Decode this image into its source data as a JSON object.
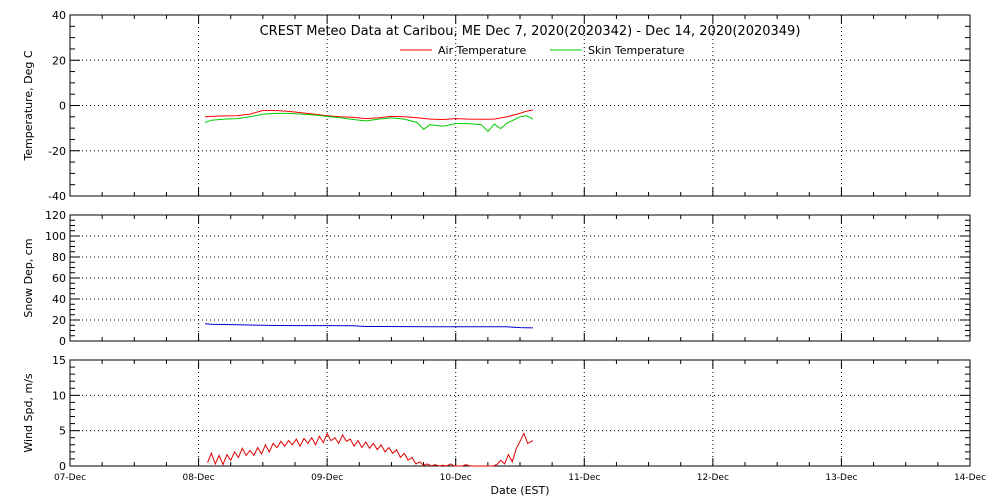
{
  "chart_data": [
    {
      "type": "line",
      "title": "CREST Meteo Data at Caribou, ME   Dec  7, 2020(2020342) - Dec 14, 2020(2020349)",
      "ylabel": "Temperature, Deg C",
      "ylim": [
        -40,
        40
      ],
      "yticks": [
        "40",
        "20",
        "0",
        "-20",
        "-40"
      ],
      "grid": true,
      "legend_position": "top-center",
      "series": [
        {
          "name": "Air Temperature",
          "color": "#ff0000",
          "x": [
            1.05,
            1.1,
            1.2,
            1.3,
            1.4,
            1.5,
            1.6,
            1.7,
            1.8,
            1.9,
            2.0,
            2.1,
            2.2,
            2.3,
            2.4,
            2.5,
            2.6,
            2.7,
            2.8,
            2.9,
            3.0,
            3.1,
            3.2,
            3.3,
            3.4,
            3.5,
            3.55,
            3.6
          ],
          "values": [
            -5.0,
            -4.8,
            -4.6,
            -4.5,
            -3.8,
            -2.2,
            -2.2,
            -2.6,
            -3.2,
            -3.8,
            -4.5,
            -5.0,
            -5.2,
            -5.8,
            -5.4,
            -4.8,
            -5.0,
            -5.4,
            -6.0,
            -6.2,
            -5.8,
            -6.0,
            -6.1,
            -6.0,
            -5.0,
            -3.5,
            -2.5,
            -2.0
          ]
        },
        {
          "name": "Skin Temperature",
          "color": "#00cc00",
          "x": [
            1.05,
            1.1,
            1.2,
            1.3,
            1.4,
            1.5,
            1.6,
            1.7,
            1.8,
            1.9,
            2.0,
            2.1,
            2.2,
            2.3,
            2.4,
            2.5,
            2.6,
            2.7,
            2.75,
            2.8,
            2.9,
            3.0,
            3.1,
            3.2,
            3.25,
            3.3,
            3.35,
            3.4,
            3.5,
            3.55,
            3.6
          ],
          "values": [
            -7.5,
            -6.5,
            -6.0,
            -5.8,
            -5.0,
            -3.8,
            -3.5,
            -3.5,
            -3.8,
            -4.2,
            -4.8,
            -5.4,
            -6.2,
            -6.8,
            -6.0,
            -5.5,
            -6.0,
            -7.5,
            -10.5,
            -8.5,
            -9.2,
            -8.0,
            -8.0,
            -8.5,
            -11.5,
            -8.2,
            -10.2,
            -7.8,
            -5.0,
            -4.5,
            -6.0
          ]
        }
      ]
    },
    {
      "type": "line",
      "ylabel": "Snow Dep, cm",
      "ylim": [
        0,
        120
      ],
      "yticks": [
        "120",
        "100",
        "80",
        "60",
        "40",
        "20",
        "0"
      ],
      "grid": true,
      "series": [
        {
          "color": "#0000cc",
          "x": [
            1.05,
            1.1,
            1.3,
            1.5,
            1.6,
            1.8,
            2.0,
            2.2,
            2.3,
            2.6,
            2.8,
            3.0,
            3.2,
            3.4,
            3.5,
            3.6
          ],
          "values": [
            16.5,
            16,
            15.5,
            15,
            14.8,
            14.7,
            14.7,
            14.5,
            13.8,
            13.7,
            13.6,
            13.6,
            13.5,
            13.5,
            12.8,
            12.5
          ]
        }
      ]
    },
    {
      "type": "line",
      "ylabel": "Wind Spd, m/s",
      "xlabel": "Date (EST)",
      "ylim": [
        0,
        15
      ],
      "yticks": [
        "15",
        "10",
        "5",
        "0"
      ],
      "xlim": [
        0,
        7
      ],
      "xticks": [
        "07-Dec",
        "08-Dec",
        "09-Dec",
        "10-Dec",
        "11-Dec",
        "12-Dec",
        "13-Dec",
        "14-Dec"
      ],
      "grid": true,
      "series": [
        {
          "color": "#dd0000",
          "x": [
            1.07,
            1.1,
            1.13,
            1.16,
            1.19,
            1.22,
            1.25,
            1.28,
            1.31,
            1.34,
            1.37,
            1.4,
            1.43,
            1.46,
            1.49,
            1.52,
            1.55,
            1.58,
            1.61,
            1.64,
            1.67,
            1.7,
            1.73,
            1.76,
            1.79,
            1.82,
            1.85,
            1.88,
            1.91,
            1.94,
            1.97,
            2.0,
            2.03,
            2.06,
            2.09,
            2.12,
            2.15,
            2.18,
            2.21,
            2.24,
            2.27,
            2.3,
            2.33,
            2.36,
            2.39,
            2.42,
            2.45,
            2.48,
            2.51,
            2.54,
            2.57,
            2.6,
            2.63,
            2.66,
            2.69,
            2.72,
            2.75,
            2.78,
            2.81,
            2.84,
            2.87,
            2.9,
            2.93,
            2.96,
            2.99,
            3.02,
            3.05,
            3.08,
            3.11,
            3.14,
            3.17,
            3.2,
            3.23,
            3.26,
            3.29,
            3.32,
            3.35,
            3.38,
            3.41,
            3.44,
            3.47,
            3.5,
            3.53,
            3.56,
            3.6
          ],
          "values": [
            0.5,
            1.8,
            0.3,
            1.5,
            0.2,
            1.6,
            0.8,
            2.0,
            1.2,
            2.5,
            1.5,
            2.2,
            1.5,
            2.6,
            1.7,
            3.0,
            2.0,
            3.2,
            2.6,
            3.5,
            2.8,
            3.6,
            3.0,
            3.8,
            2.8,
            3.9,
            3.2,
            4.0,
            3.0,
            4.2,
            3.3,
            4.6,
            3.6,
            4.0,
            3.2,
            4.4,
            3.5,
            3.8,
            2.8,
            3.6,
            2.6,
            3.4,
            2.5,
            3.2,
            2.3,
            3.0,
            2.0,
            2.6,
            1.8,
            2.3,
            1.2,
            1.8,
            0.8,
            1.2,
            0.3,
            0.6,
            0.1,
            0.3,
            0.0,
            0.2,
            0.0,
            0.1,
            0.0,
            0.3,
            0.0,
            0.0,
            0.0,
            0.2,
            0.0,
            0.0,
            0.0,
            0.0,
            0.0,
            0.0,
            0.0,
            0.2,
            0.8,
            0.3,
            1.6,
            0.6,
            2.4,
            3.5,
            4.6,
            3.2,
            3.6
          ]
        }
      ]
    }
  ]
}
